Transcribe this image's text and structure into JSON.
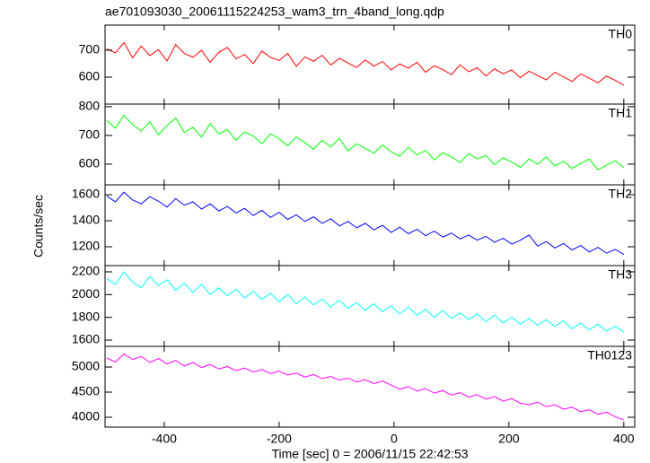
{
  "chart_data": [
    {
      "type": "line",
      "title": "ae701093030_20061115224253_wam3_trn_4band_long.qdp",
      "label": "TH0",
      "color": "#ff0000",
      "x": [
        -500,
        -485,
        -470,
        -455,
        -440,
        -425,
        -410,
        -395,
        -380,
        -365,
        -350,
        -335,
        -320,
        -305,
        -290,
        -275,
        -260,
        -245,
        -230,
        -215,
        -200,
        -185,
        -170,
        -155,
        -140,
        -125,
        -110,
        -95,
        -80,
        -65,
        -50,
        -35,
        -20,
        -5,
        10,
        25,
        40,
        55,
        70,
        85,
        100,
        115,
        130,
        145,
        160,
        175,
        190,
        205,
        220,
        235,
        250,
        265,
        280,
        295,
        310,
        325,
        340,
        355,
        370,
        385,
        400
      ],
      "values": [
        705,
        690,
        728,
        672,
        715,
        680,
        702,
        660,
        721,
        688,
        674,
        700,
        655,
        692,
        710,
        668,
        684,
        650,
        697,
        673,
        662,
        688,
        640,
        675,
        659,
        681,
        645,
        670,
        652,
        636,
        664,
        641,
        658,
        627,
        649,
        633,
        655,
        618,
        642,
        628,
        609,
        646,
        620,
        635,
        604,
        631,
        612,
        627,
        598,
        622,
        606,
        590,
        618,
        601,
        584,
        612,
        596,
        579,
        604,
        588,
        570
      ],
      "ylim": [
        500,
        793
      ],
      "yticks": [
        600,
        700
      ]
    },
    {
      "type": "line",
      "label": "TH1",
      "color": "#00ff00",
      "x": [
        -500,
        -485,
        -470,
        -455,
        -440,
        -425,
        -410,
        -395,
        -380,
        -365,
        -350,
        -335,
        -320,
        -305,
        -290,
        -275,
        -260,
        -245,
        -230,
        -215,
        -200,
        -185,
        -170,
        -155,
        -140,
        -125,
        -110,
        -95,
        -80,
        -65,
        -50,
        -35,
        -20,
        -5,
        10,
        25,
        40,
        55,
        70,
        85,
        100,
        115,
        130,
        145,
        160,
        175,
        190,
        205,
        220,
        235,
        250,
        265,
        280,
        295,
        310,
        325,
        340,
        355,
        370,
        385,
        400
      ],
      "values": [
        752,
        725,
        770,
        738,
        715,
        748,
        702,
        735,
        760,
        711,
        728,
        694,
        741,
        705,
        720,
        683,
        712,
        698,
        671,
        706,
        688,
        664,
        695,
        675,
        652,
        683,
        660,
        690,
        646,
        671,
        655,
        638,
        667,
        643,
        628,
        659,
        632,
        648,
        615,
        640,
        625,
        606,
        637,
        618,
        630,
        598,
        622,
        607,
        589,
        618,
        600,
        625,
        594,
        610,
        585,
        603,
        618,
        580,
        597,
        612,
        588
      ],
      "ylim": [
        528,
        809
      ],
      "yticks": [
        600,
        700,
        800
      ]
    },
    {
      "type": "line",
      "label": "TH2",
      "color": "#0000ff",
      "ylabel": "Counts/sec",
      "x": [
        -500,
        -485,
        -470,
        -455,
        -440,
        -425,
        -410,
        -395,
        -380,
        -365,
        -350,
        -335,
        -320,
        -305,
        -290,
        -275,
        -260,
        -245,
        -230,
        -215,
        -200,
        -185,
        -170,
        -155,
        -140,
        -125,
        -110,
        -95,
        -80,
        -65,
        -50,
        -35,
        -20,
        -5,
        10,
        25,
        40,
        55,
        70,
        85,
        100,
        115,
        130,
        145,
        160,
        175,
        190,
        205,
        220,
        235,
        250,
        265,
        280,
        295,
        310,
        325,
        340,
        355,
        370,
        385,
        400
      ],
      "values": [
        1590,
        1545,
        1620,
        1560,
        1530,
        1585,
        1550,
        1505,
        1570,
        1520,
        1545,
        1490,
        1530,
        1475,
        1510,
        1460,
        1495,
        1440,
        1480,
        1425,
        1465,
        1410,
        1445,
        1395,
        1430,
        1380,
        1415,
        1360,
        1395,
        1345,
        1380,
        1330,
        1365,
        1310,
        1350,
        1300,
        1335,
        1285,
        1320,
        1275,
        1305,
        1260,
        1290,
        1250,
        1280,
        1235,
        1265,
        1220,
        1250,
        1290,
        1205,
        1240,
        1190,
        1225,
        1175,
        1210,
        1160,
        1195,
        1150,
        1180,
        1140
      ],
      "ylim": [
        1055,
        1676
      ],
      "yticks": [
        1200,
        1400,
        1600
      ]
    },
    {
      "type": "line",
      "label": "TH3",
      "color": "#00ffff",
      "x": [
        -500,
        -485,
        -470,
        -455,
        -440,
        -425,
        -410,
        -395,
        -380,
        -365,
        -350,
        -335,
        -320,
        -305,
        -290,
        -275,
        -260,
        -245,
        -230,
        -215,
        -200,
        -185,
        -170,
        -155,
        -140,
        -125,
        -110,
        -95,
        -80,
        -65,
        -50,
        -35,
        -20,
        -5,
        10,
        25,
        40,
        55,
        70,
        85,
        100,
        115,
        130,
        145,
        160,
        175,
        190,
        205,
        220,
        235,
        250,
        265,
        280,
        295,
        310,
        325,
        340,
        355,
        370,
        385,
        400
      ],
      "values": [
        2140,
        2090,
        2200,
        2110,
        2060,
        2160,
        2080,
        2130,
        2040,
        2100,
        2020,
        2090,
        2000,
        2060,
        1990,
        2050,
        1970,
        2030,
        1960,
        2010,
        1940,
        2000,
        1920,
        1980,
        1910,
        1960,
        1890,
        1950,
        1880,
        1930,
        1860,
        1920,
        1850,
        1900,
        1830,
        1890,
        1820,
        1870,
        1800,
        1860,
        1790,
        1840,
        1780,
        1830,
        1760,
        1820,
        1750,
        1800,
        1740,
        1790,
        1730,
        1780,
        1720,
        1770,
        1700,
        1750,
        1690,
        1740,
        1680,
        1720,
        1670
      ],
      "ylim": [
        1545,
        2255
      ],
      "yticks": [
        1600,
        1800,
        2000,
        2200
      ]
    },
    {
      "type": "line",
      "label": "TH0123",
      "color": "#ff00ff",
      "xlabel": "Time [sec] 0 = 2006/11/15 22:42:53",
      "x": [
        -500,
        -485,
        -470,
        -455,
        -440,
        -425,
        -410,
        -395,
        -380,
        -365,
        -350,
        -335,
        -320,
        -305,
        -290,
        -275,
        -260,
        -245,
        -230,
        -215,
        -200,
        -185,
        -170,
        -155,
        -140,
        -125,
        -110,
        -95,
        -80,
        -65,
        -50,
        -35,
        -20,
        -5,
        10,
        25,
        40,
        55,
        70,
        85,
        100,
        115,
        130,
        145,
        160,
        175,
        190,
        205,
        220,
        235,
        250,
        265,
        280,
        295,
        310,
        325,
        340,
        355,
        370,
        385,
        400
      ],
      "values": [
        5180,
        5100,
        5260,
        5150,
        5210,
        5090,
        5170,
        5060,
        5130,
        5020,
        5090,
        4990,
        5050,
        4960,
        5010,
        4930,
        4980,
        4900,
        4950,
        4870,
        4920,
        4840,
        4880,
        4800,
        4850,
        4770,
        4810,
        4740,
        4780,
        4700,
        4750,
        4670,
        4720,
        4640,
        4560,
        4610,
        4520,
        4570,
        4480,
        4530,
        4440,
        4490,
        4400,
        4450,
        4360,
        4410,
        4320,
        4370,
        4280,
        4250,
        4300,
        4210,
        4250,
        4160,
        4200,
        4110,
        4150,
        4060,
        4100,
        4010,
        3950
      ],
      "ylim": [
        3804,
        5411
      ],
      "yticks": [
        4000,
        4500,
        5000
      ],
      "xlim": [
        -503,
        419
      ],
      "xticks": [
        -400,
        -200,
        0,
        200,
        400
      ]
    }
  ]
}
